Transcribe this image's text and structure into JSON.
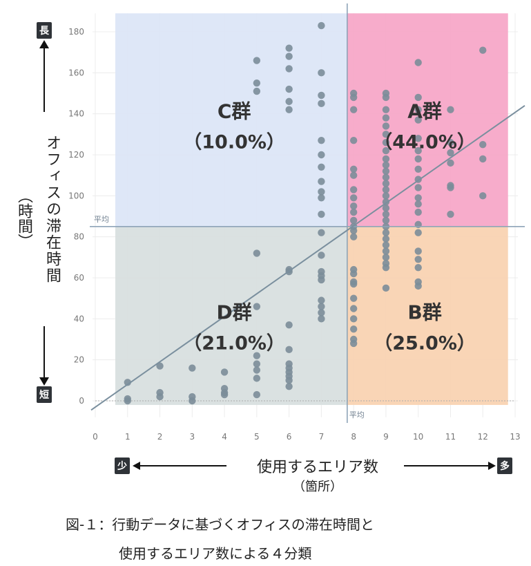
{
  "chart_data": {
    "type": "scatter",
    "xlabel": "使用するエリア数",
    "xunit": "（箇所）",
    "ylabel": "オフィスの滞在時間",
    "yunit": "（時間）",
    "xlim": [
      0,
      13
    ],
    "ylim": [
      -8,
      190
    ],
    "xticks": [
      0,
      1,
      2,
      3,
      4,
      5,
      6,
      7,
      8,
      9,
      10,
      11,
      12,
      13
    ],
    "yticks": [
      0,
      20,
      40,
      60,
      80,
      100,
      120,
      140,
      160,
      180
    ],
    "mean_x": 7.8,
    "mean_y": 85,
    "mean_label": "平均",
    "trendline": {
      "x": [
        0,
        13
      ],
      "y": [
        -4.5,
        144
      ]
    },
    "quadrants": [
      {
        "name": "A群",
        "share": "（44.0%）",
        "color": "#f7a8c8",
        "label_x": 10.2,
        "label_y": 138
      },
      {
        "name": "B群",
        "share": "（25.0%）",
        "color": "#f9d3b2",
        "label_x": 10.2,
        "label_y": 40
      },
      {
        "name": "C群",
        "share": "（10.0%）",
        "color": "#dce6f7",
        "label_x": 4.3,
        "label_y": 138
      },
      {
        "name": "D群",
        "share": "（21.0%）",
        "color": "#d8dfdf",
        "label_x": 4.3,
        "label_y": 40
      }
    ],
    "points": [
      [
        1,
        9
      ],
      [
        1,
        1
      ],
      [
        1,
        0
      ],
      [
        2,
        17
      ],
      [
        2,
        4
      ],
      [
        2,
        2
      ],
      [
        3,
        16
      ],
      [
        3,
        2
      ],
      [
        3,
        0
      ],
      [
        4,
        14
      ],
      [
        4,
        6
      ],
      [
        4,
        4
      ],
      [
        4,
        3
      ],
      [
        5,
        166
      ],
      [
        5,
        155
      ],
      [
        5,
        151
      ],
      [
        5,
        72
      ],
      [
        5,
        46
      ],
      [
        5,
        22
      ],
      [
        5,
        18
      ],
      [
        5,
        15
      ],
      [
        5,
        11
      ],
      [
        5,
        3
      ],
      [
        6,
        172
      ],
      [
        6,
        168
      ],
      [
        6,
        162
      ],
      [
        6,
        152
      ],
      [
        6,
        146
      ],
      [
        6,
        142
      ],
      [
        6,
        64
      ],
      [
        6,
        63
      ],
      [
        6,
        37
      ],
      [
        6,
        25
      ],
      [
        6,
        18
      ],
      [
        6,
        16
      ],
      [
        6,
        14
      ],
      [
        6,
        12
      ],
      [
        6,
        10
      ],
      [
        6,
        7
      ],
      [
        7,
        183
      ],
      [
        7,
        160
      ],
      [
        7,
        149
      ],
      [
        7,
        145
      ],
      [
        7,
        127
      ],
      [
        7,
        120
      ],
      [
        7,
        114
      ],
      [
        7,
        107
      ],
      [
        7,
        102
      ],
      [
        7,
        99
      ],
      [
        7,
        91
      ],
      [
        7,
        82
      ],
      [
        7,
        71
      ],
      [
        7,
        63
      ],
      [
        7,
        61
      ],
      [
        7,
        59
      ],
      [
        7,
        49
      ],
      [
        7,
        46
      ],
      [
        7,
        43
      ],
      [
        7,
        40
      ],
      [
        8,
        150
      ],
      [
        8,
        148
      ],
      [
        8,
        142
      ],
      [
        8,
        127
      ],
      [
        8,
        113
      ],
      [
        8,
        110
      ],
      [
        8,
        103
      ],
      [
        8,
        99
      ],
      [
        8,
        95
      ],
      [
        8,
        92
      ],
      [
        8,
        88
      ],
      [
        8,
        85
      ],
      [
        8,
        83
      ],
      [
        8,
        80
      ],
      [
        8,
        64
      ],
      [
        8,
        62
      ],
      [
        8,
        58
      ],
      [
        8,
        57
      ],
      [
        8,
        50
      ],
      [
        8,
        45
      ],
      [
        8,
        40
      ],
      [
        8,
        35
      ],
      [
        8,
        30
      ],
      [
        8,
        28
      ],
      [
        9,
        150
      ],
      [
        9,
        148
      ],
      [
        9,
        142
      ],
      [
        9,
        138
      ],
      [
        9,
        134
      ],
      [
        9,
        130
      ],
      [
        9,
        126
      ],
      [
        9,
        122
      ],
      [
        9,
        118
      ],
      [
        9,
        115
      ],
      [
        9,
        112
      ],
      [
        9,
        109
      ],
      [
        9,
        106
      ],
      [
        9,
        103
      ],
      [
        9,
        100
      ],
      [
        9,
        97
      ],
      [
        9,
        94
      ],
      [
        9,
        91
      ],
      [
        9,
        88
      ],
      [
        9,
        85
      ],
      [
        9,
        82
      ],
      [
        9,
        79
      ],
      [
        9,
        76
      ],
      [
        9,
        73
      ],
      [
        9,
        70
      ],
      [
        9,
        67
      ],
      [
        9,
        65
      ],
      [
        9,
        55
      ],
      [
        10,
        165
      ],
      [
        10,
        148
      ],
      [
        10,
        142
      ],
      [
        10,
        137
      ],
      [
        10,
        128
      ],
      [
        10,
        122
      ],
      [
        10,
        118
      ],
      [
        10,
        113
      ],
      [
        10,
        108
      ],
      [
        10,
        104
      ],
      [
        10,
        99
      ],
      [
        10,
        96
      ],
      [
        10,
        92
      ],
      [
        10,
        86
      ],
      [
        10,
        82
      ],
      [
        10,
        73
      ],
      [
        10,
        69
      ],
      [
        10,
        65
      ],
      [
        10,
        58
      ],
      [
        10,
        56
      ],
      [
        11,
        142
      ],
      [
        11,
        126
      ],
      [
        11,
        121
      ],
      [
        11,
        116
      ],
      [
        11,
        105
      ],
      [
        11,
        104
      ],
      [
        11,
        91
      ],
      [
        12,
        171
      ],
      [
        12,
        125
      ],
      [
        12,
        118
      ],
      [
        12,
        100
      ]
    ]
  },
  "labels": {
    "long": "長",
    "short": "短",
    "few": "少",
    "many": "多"
  },
  "caption": {
    "line1": "図-１：行動データに基づくオフィスの滞在時間と",
    "line2": "使用するエリア数による４分類"
  }
}
